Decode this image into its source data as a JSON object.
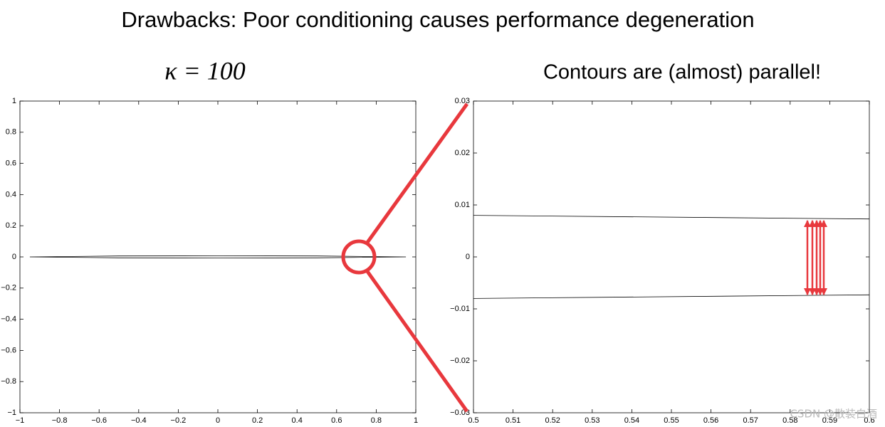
{
  "title": "Drawbacks: Poor conditioning causes performance degeneration",
  "left_label": "κ = 100",
  "right_label": "Contours are (almost) parallel!",
  "watermark": "CSDN @散装白酒",
  "chart_data": [
    {
      "type": "line",
      "x": [
        -0.95,
        -0.5,
        0,
        0.5,
        0.95,
        0.5,
        0,
        -0.5,
        -0.95
      ],
      "series": [
        {
          "color": "#000000",
          "values": [
            0,
            0.006,
            0.007,
            0.006,
            0,
            -0.006,
            -0.007,
            -0.006,
            0
          ]
        }
      ],
      "xlim": [
        -1,
        1
      ],
      "ylim": [
        -1,
        1
      ],
      "xticks": [
        {
          "value": -1,
          "label": "−1"
        },
        {
          "value": -0.8,
          "label": "−0.8"
        },
        {
          "value": -0.6,
          "label": "−0.6"
        },
        {
          "value": -0.4,
          "label": "−0.4"
        },
        {
          "value": -0.2,
          "label": "−0.2"
        },
        0,
        0.2,
        0.4,
        0.6,
        0.8,
        1
      ],
      "yticks": [
        {
          "value": -1,
          "label": "−1"
        },
        {
          "value": -0.8,
          "label": "−0.8"
        },
        {
          "value": -0.6,
          "label": "−0.6"
        },
        {
          "value": -0.4,
          "label": "−0.4"
        },
        {
          "value": -0.2,
          "label": "−0.2"
        },
        0,
        0.2,
        0.4,
        0.6,
        0.8,
        1
      ]
    },
    {
      "type": "line",
      "x": [
        0.5,
        0.6
      ],
      "series": [
        {
          "color": "#000000",
          "values": [
            0.008,
            0.0073
          ]
        },
        {
          "color": "#000000",
          "values": [
            -0.008,
            -0.0073
          ]
        }
      ],
      "xlim": [
        0.5,
        0.6
      ],
      "ylim": [
        -0.03,
        0.03
      ],
      "xticks": [
        0.5,
        0.51,
        0.52,
        0.53,
        0.54,
        0.55,
        0.56,
        0.57,
        0.58,
        0.59,
        0.6
      ],
      "yticks": [
        {
          "value": -0.03,
          "label": "−0.03"
        },
        {
          "value": -0.02,
          "label": "−0.02"
        },
        {
          "value": -0.01,
          "label": "−0.01"
        },
        0,
        0.01,
        0.02,
        0.03
      ]
    }
  ]
}
